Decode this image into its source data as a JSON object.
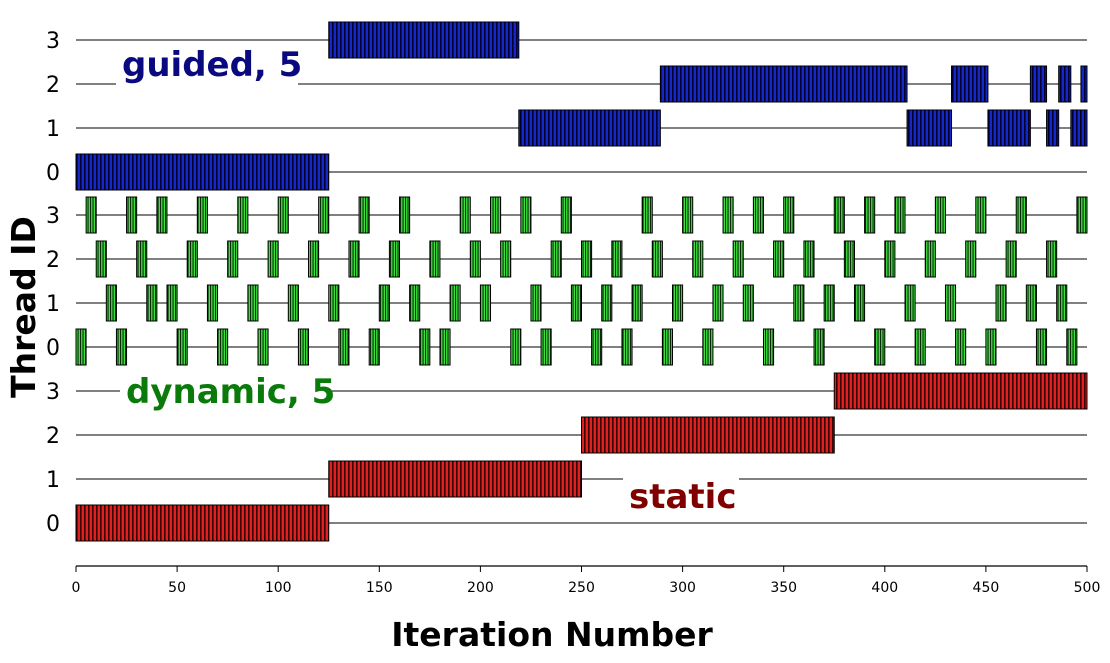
{
  "chart_data": {
    "type": "gantt",
    "xlabel": "Iteration Number",
    "ylabel": "Thread ID",
    "xlim": [
      0,
      500
    ],
    "xticks": [
      0,
      50,
      100,
      150,
      200,
      250,
      300,
      350,
      400,
      450,
      500
    ],
    "threads": [
      0,
      1,
      2,
      3
    ],
    "grid": false,
    "panels": [
      {
        "name": "static",
        "label": "static",
        "label_color": "#800000",
        "fill": "#e02020",
        "dark": "#5a0000",
        "assignments": [
          {
            "thread": 0,
            "start": 0,
            "end": 125
          },
          {
            "thread": 1,
            "start": 125,
            "end": 250
          },
          {
            "thread": 2,
            "start": 250,
            "end": 375
          },
          {
            "thread": 3,
            "start": 375,
            "end": 500
          }
        ]
      },
      {
        "name": "dynamic-5",
        "label": "dynamic, 5",
        "label_color": "#0a7a0a",
        "fill": "#30d030",
        "dark": "#0a3a0a",
        "chunk_size": 5,
        "thread_order": [
          0,
          3,
          2,
          1,
          0,
          3,
          2,
          1,
          3,
          1,
          0,
          2,
          3,
          1,
          0,
          2,
          3,
          1,
          0,
          2,
          3,
          1,
          0,
          2,
          3,
          1,
          0,
          2,
          3,
          0,
          1,
          2,
          3,
          1,
          0,
          2,
          0,
          1,
          3,
          2,
          1,
          3,
          2,
          0,
          3,
          1,
          0,
          2,
          3,
          1,
          2,
          0,
          1,
          2,
          0,
          1,
          3,
          2,
          0,
          1,
          3,
          2,
          0,
          1,
          3,
          2,
          1,
          3,
          0,
          2,
          3,
          1,
          2,
          0,
          1,
          3,
          2,
          1,
          3,
          0,
          2,
          3,
          1,
          0,
          2,
          3,
          1,
          0,
          2,
          3,
          0,
          1,
          2,
          3,
          1,
          0,
          2,
          1,
          0,
          3
        ]
      },
      {
        "name": "guided-5",
        "label": "guided, 5",
        "label_color": "#0a0a80",
        "fill": "#1020c0",
        "dark": "#000040",
        "assignments": [
          {
            "thread": 0,
            "start": 0,
            "end": 125
          },
          {
            "thread": 3,
            "start": 125,
            "end": 219
          },
          {
            "thread": 1,
            "start": 219,
            "end": 289
          },
          {
            "thread": 2,
            "start": 289,
            "end": 411
          },
          {
            "thread": 1,
            "start": 411,
            "end": 433
          },
          {
            "thread": 2,
            "start": 433,
            "end": 451
          },
          {
            "thread": 1,
            "start": 451,
            "end": 472
          },
          {
            "thread": 2,
            "start": 472,
            "end": 480
          },
          {
            "thread": 1,
            "start": 480,
            "end": 486
          },
          {
            "thread": 2,
            "start": 486,
            "end": 492
          },
          {
            "thread": 1,
            "start": 492,
            "end": 497
          },
          {
            "thread": 2,
            "start": 497,
            "end": 502
          },
          {
            "thread": 1,
            "start": 497,
            "end": 500
          }
        ]
      }
    ]
  }
}
